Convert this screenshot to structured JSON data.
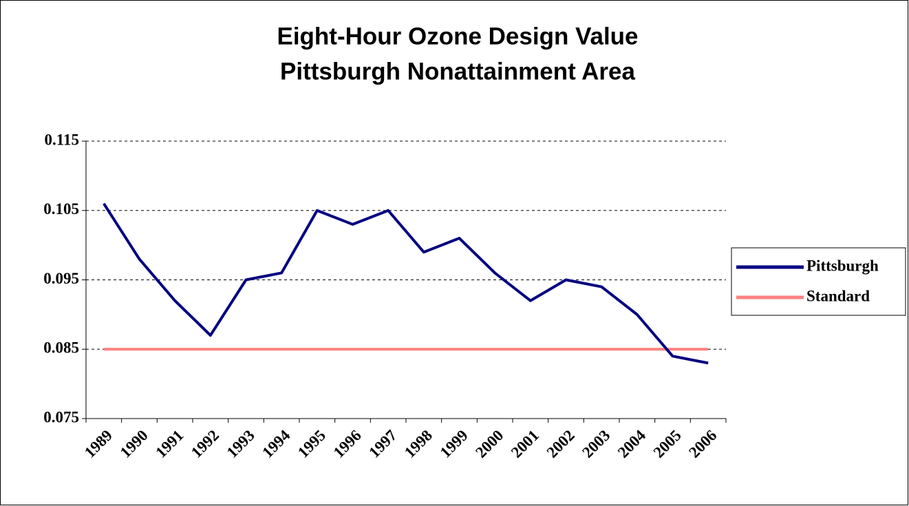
{
  "chart_data": {
    "type": "line",
    "title": [
      "Eight-Hour Ozone Design Value",
      "Pittsburgh Nonattainment Area"
    ],
    "categories": [
      "1989",
      "1990",
      "1991",
      "1992",
      "1993",
      "1994",
      "1995",
      "1996",
      "1997",
      "1998",
      "1999",
      "2000",
      "2001",
      "2002",
      "2003",
      "2004",
      "2005",
      "2006"
    ],
    "series": [
      {
        "name": "Pittsburgh",
        "color": "#000080",
        "values": [
          0.106,
          0.098,
          0.092,
          0.087,
          0.095,
          0.096,
          0.105,
          0.103,
          0.105,
          0.099,
          0.101,
          0.096,
          0.092,
          0.095,
          0.094,
          0.09,
          0.084,
          0.083
        ]
      },
      {
        "name": "Standard",
        "color": "#ff8080",
        "values": [
          0.085,
          0.085,
          0.085,
          0.085,
          0.085,
          0.085,
          0.085,
          0.085,
          0.085,
          0.085,
          0.085,
          0.085,
          0.085,
          0.085,
          0.085,
          0.085,
          0.085,
          0.085
        ]
      }
    ],
    "ylim": [
      0.075,
      0.115
    ],
    "yticks": [
      0.075,
      0.085,
      0.095,
      0.105,
      0.115
    ],
    "grid": true,
    "legend": "right"
  }
}
